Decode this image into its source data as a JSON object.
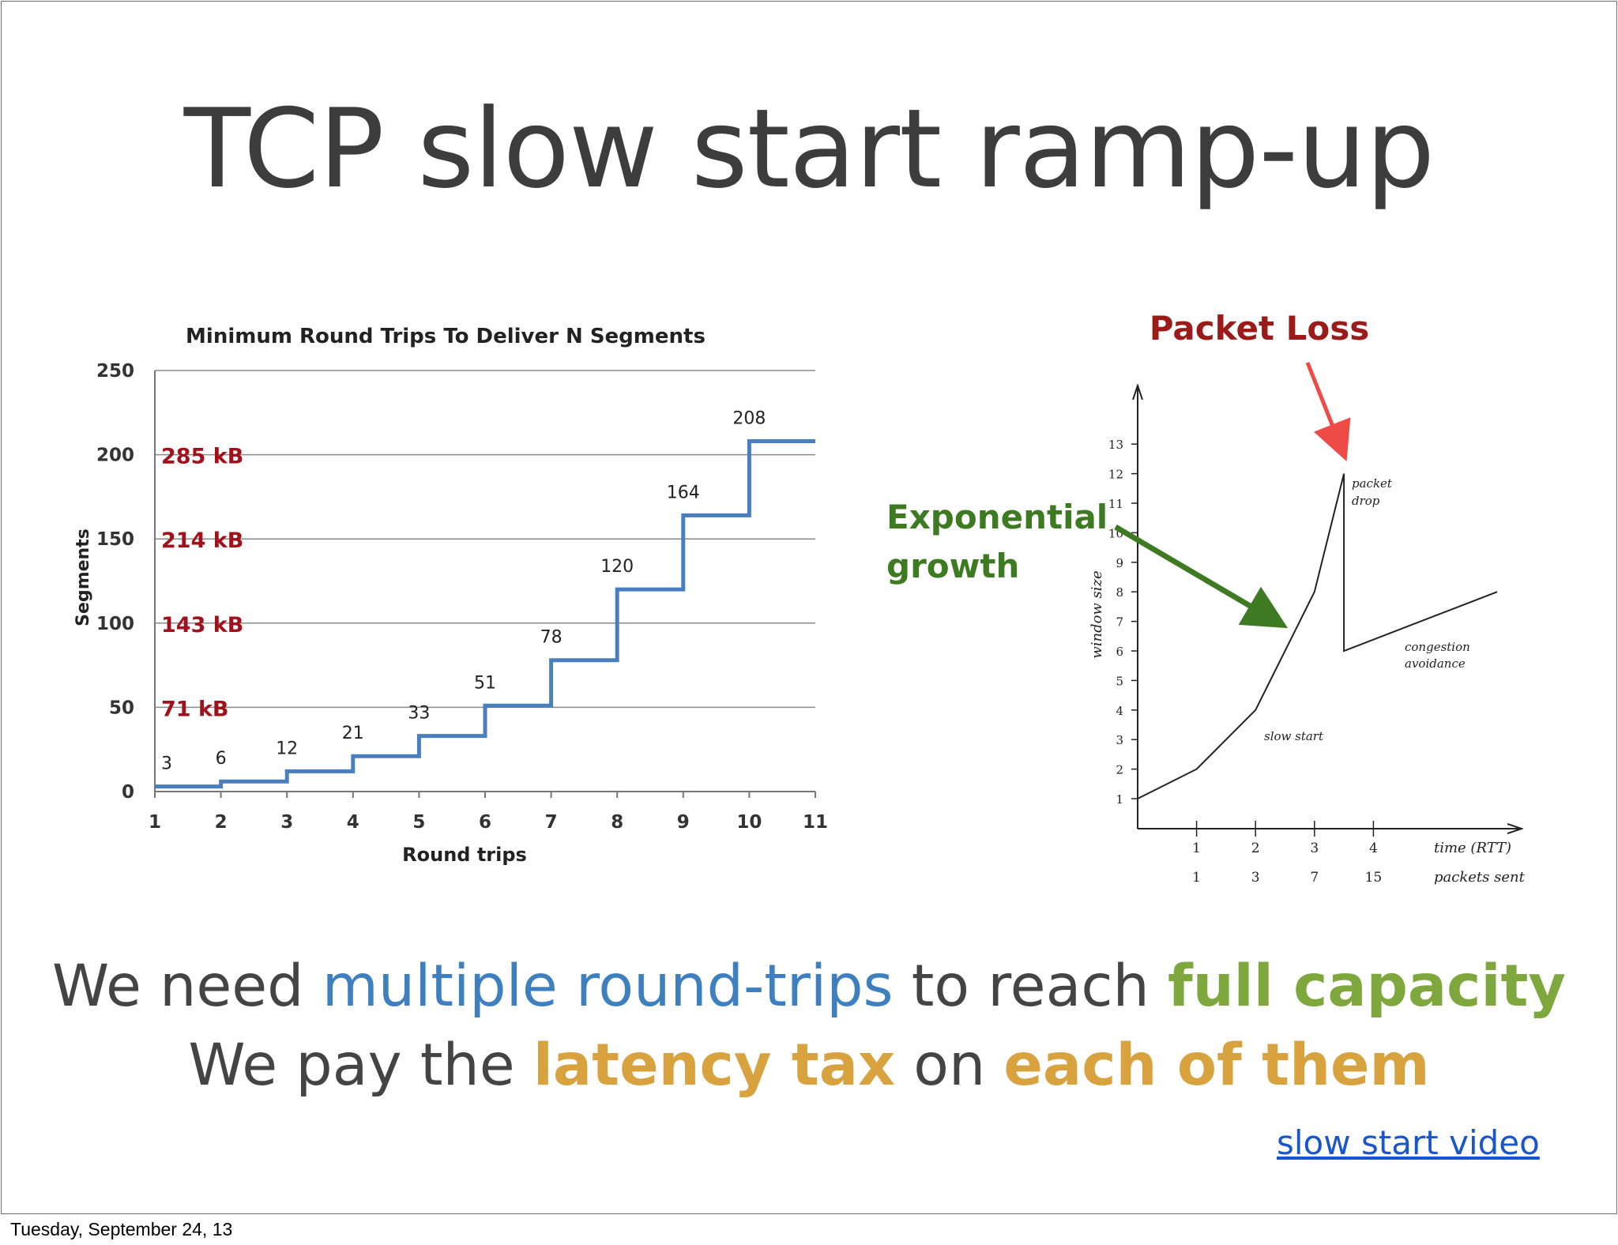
{
  "slide": {
    "title": "TCP slow start ramp-up",
    "line1": {
      "a": "We need ",
      "b": "multiple round-trips",
      "c": " to reach ",
      "d": "full capacity"
    },
    "line2": {
      "a": "We pay the ",
      "b": "latency tax",
      "c": " on ",
      "d": "each of them"
    },
    "link": "slow start video",
    "footer_date": "Tuesday, September 24, 13"
  },
  "chart_data": [
    {
      "type": "line",
      "subtype": "step",
      "title": "Minimum Round Trips To Deliver N Segments",
      "xlabel": "Round trips",
      "ylabel": "Segments",
      "x": [
        1,
        2,
        3,
        4,
        5,
        6,
        7,
        8,
        9,
        10,
        11
      ],
      "xticks": [
        "1",
        "2",
        "3",
        "4",
        "5",
        "6",
        "7",
        "8",
        "9",
        "10",
        "11"
      ],
      "yticks": [
        0,
        50,
        100,
        150,
        200,
        250
      ],
      "ylim": [
        0,
        250
      ],
      "xlim": [
        1,
        11
      ],
      "grid": true,
      "series_color": "#4a7fbf",
      "series": [
        {
          "values": [
            3,
            6,
            12,
            21,
            33,
            51,
            78,
            120,
            164,
            208,
            208
          ]
        }
      ],
      "data_labels": [
        "3",
        "6",
        "12",
        "21",
        "33",
        "51",
        "78",
        "120",
        "164",
        "208"
      ],
      "annotations": [
        {
          "text": "285 kB",
          "y": 200
        },
        {
          "text": "214 kB",
          "y": 150
        },
        {
          "text": "143 kB",
          "y": 100
        },
        {
          "text": "71 kB",
          "y": 50
        }
      ],
      "annotation_color": "#a0111c"
    },
    {
      "type": "line",
      "ylabel": "window size",
      "xlabel": "time (RTT)",
      "x_secondary_label": "packets sent",
      "x": [
        0,
        1,
        2,
        3,
        3.5,
        3.5,
        6.1
      ],
      "values": [
        1,
        2,
        4,
        8,
        12,
        6,
        8
      ],
      "xticks": [
        "1",
        "2",
        "3",
        "4"
      ],
      "x_secondary_ticks": [
        "1",
        "3",
        "7",
        "15"
      ],
      "yticks": [
        "1",
        "2",
        "3",
        "4",
        "5",
        "6",
        "7",
        "8",
        "9",
        "10",
        "11",
        "12",
        "13"
      ],
      "grid": false,
      "labels": {
        "slow_start": "slow start",
        "packet_drop_1": "packet",
        "packet_drop_2": "drop",
        "congestion_1": "congestion",
        "congestion_2": "avoidance"
      },
      "callouts": {
        "packet_loss": "Packet Loss",
        "packet_loss_color": "#9b1b1b",
        "packet_loss_arrow_color": "#ee4a46",
        "exp_1": "Exponential",
        "exp_2": "growth",
        "exp_color": "#3e7a22"
      }
    }
  ]
}
